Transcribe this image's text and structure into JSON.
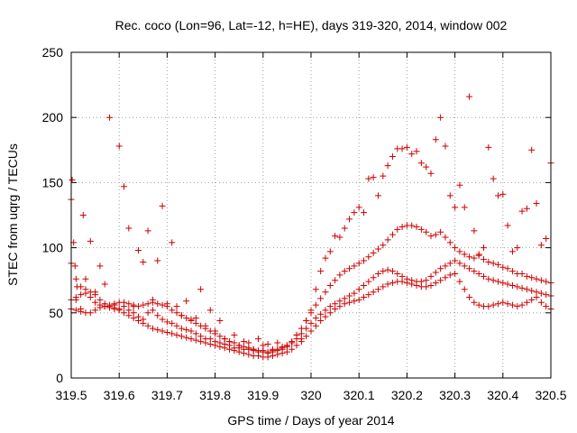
{
  "chart_data": {
    "type": "scatter",
    "title": "Rec. coco (Lon=96, Lat=-12, h=HE), days 319-320, 2014, window 002",
    "xlabel": "GPS time / Days of year 2014",
    "ylabel": "STEC from uqrg / TECUs",
    "xlim": [
      319.5,
      320.5
    ],
    "ylim": [
      0,
      250
    ],
    "xticks": [
      "319.5",
      "319.6",
      "319.7",
      "319.8",
      "319.9",
      "320",
      "320.1",
      "320.2",
      "320.3",
      "320.4",
      "320.5"
    ],
    "yticks": [
      "0",
      "50",
      "100",
      "150",
      "200",
      "250"
    ],
    "grid": true,
    "marker": "plus",
    "color": "#cc0000",
    "series": [
      {
        "name": "",
        "x": [
          319.5,
          319.502,
          319.505,
          319.508,
          319.51,
          319.512,
          319.52,
          319.525,
          319.53,
          319.54,
          319.55,
          319.56,
          319.57,
          319.58,
          319.59,
          319.6,
          319.61,
          319.62,
          319.63,
          319.64,
          319.65,
          319.66,
          319.67,
          319.68,
          319.69,
          319.7,
          319.71,
          319.72,
          319.73,
          319.74,
          319.75,
          319.76,
          319.77,
          319.78,
          319.79,
          319.8,
          319.81,
          319.82,
          319.83,
          319.84,
          319.85,
          319.86,
          319.87,
          319.88,
          319.89,
          319.9,
          319.91,
          319.92,
          319.93,
          319.94,
          319.95,
          319.96,
          319.97,
          319.98,
          319.99,
          320.0,
          320.01,
          320.02,
          320.03,
          320.04,
          320.05,
          320.06,
          320.07,
          320.08,
          320.09,
          320.1,
          320.11,
          320.12,
          320.13,
          320.14,
          320.15,
          320.16,
          320.17,
          320.18,
          320.19,
          320.2,
          320.21,
          320.22,
          320.23,
          320.24,
          320.25,
          320.26,
          320.27,
          320.28,
          320.29,
          320.3,
          320.31,
          320.32,
          320.33,
          320.34,
          320.35,
          320.36,
          320.37,
          320.38,
          320.39,
          320.4,
          320.41,
          320.42,
          320.43,
          320.44,
          320.45,
          320.46,
          320.47,
          320.48,
          320.49,
          320.5
        ],
        "values": [
          137,
          152,
          104,
          86,
          60,
          70,
          53,
          125,
          76,
          105,
          66,
          86,
          72,
          200,
          56,
          178,
          147,
          115,
          55,
          98,
          89,
          113,
          60,
          90,
          132,
          57,
          104,
          55,
          48,
          59,
          45,
          46,
          68,
          40,
          52,
          36,
          44,
          30,
          28,
          33,
          25,
          28,
          27,
          22,
          30,
          25,
          26,
          22,
          27,
          24,
          25,
          27,
          33,
          30,
          44,
          52,
          68,
          82,
          92,
          97,
          109,
          108,
          115,
          122,
          127,
          131,
          127,
          153,
          154,
          140,
          155,
          163,
          170,
          176,
          176,
          177,
          172,
          174,
          165,
          162,
          157,
          183,
          200,
          178,
          140,
          131,
          148,
          131,
          216,
          113,
          95,
          100,
          177,
          153,
          140,
          141,
          117,
          97,
          100,
          128,
          130,
          175,
          134,
          102,
          107,
          165
        ]
      },
      {
        "name": "",
        "x": [
          319.5,
          319.51,
          319.52,
          319.53,
          319.54,
          319.55,
          319.56,
          319.57,
          319.58,
          319.59,
          319.6,
          319.61,
          319.62,
          319.63,
          319.64,
          319.65,
          319.66,
          319.67,
          319.68,
          319.69,
          319.7,
          319.71,
          319.72,
          319.73,
          319.74,
          319.75,
          319.76,
          319.77,
          319.78,
          319.79,
          319.8,
          319.81,
          319.82,
          319.83,
          319.84,
          319.85,
          319.86,
          319.87,
          319.88,
          319.89,
          319.9,
          319.91,
          319.92,
          319.93,
          319.94,
          319.95,
          319.96,
          319.97,
          319.98,
          319.99,
          320.0,
          320.01,
          320.02,
          320.03,
          320.04,
          320.05,
          320.06,
          320.07,
          320.08,
          320.09,
          320.1,
          320.11,
          320.12,
          320.13,
          320.14,
          320.15,
          320.16,
          320.17,
          320.18,
          320.19,
          320.2,
          320.21,
          320.22,
          320.23,
          320.24,
          320.25,
          320.26,
          320.27,
          320.28,
          320.29,
          320.3,
          320.31,
          320.32,
          320.33,
          320.34,
          320.35,
          320.36,
          320.37,
          320.38,
          320.39,
          320.4,
          320.41,
          320.42,
          320.43,
          320.44,
          320.45,
          320.46,
          320.47,
          320.48,
          320.49,
          320.5
        ],
        "values": [
          88,
          76,
          70,
          68,
          62,
          58,
          56,
          55,
          54,
          53,
          53,
          55,
          52,
          50,
          47,
          45,
          50,
          52,
          48,
          45,
          43,
          42,
          40,
          38,
          37,
          36,
          34,
          32,
          30,
          30,
          28,
          27,
          26,
          25,
          23,
          23,
          22,
          22,
          21,
          20,
          20,
          19,
          20,
          21,
          22,
          24,
          28,
          33,
          38,
          44,
          50,
          56,
          61,
          66,
          71,
          75,
          79,
          82,
          84,
          86,
          88,
          90,
          93,
          96,
          99,
          102,
          106,
          110,
          114,
          116,
          117,
          117,
          116,
          114,
          112,
          109,
          110,
          112,
          108,
          104,
          100,
          97,
          95,
          93,
          92,
          94,
          91,
          89,
          88,
          87,
          85,
          84,
          82,
          80,
          80,
          78,
          77,
          76,
          75,
          74,
          73
        ]
      },
      {
        "name": "",
        "x": [
          319.5,
          319.51,
          319.52,
          319.53,
          319.54,
          319.55,
          319.56,
          319.57,
          319.58,
          319.59,
          319.6,
          319.61,
          319.62,
          319.63,
          319.64,
          319.65,
          319.66,
          319.67,
          319.68,
          319.69,
          319.7,
          319.71,
          319.72,
          319.73,
          319.74,
          319.75,
          319.76,
          319.77,
          319.78,
          319.79,
          319.8,
          319.81,
          319.82,
          319.83,
          319.84,
          319.85,
          319.86,
          319.87,
          319.88,
          319.89,
          319.9,
          319.91,
          319.92,
          319.93,
          319.94,
          319.95,
          319.96,
          319.97,
          319.98,
          319.99,
          320.0,
          320.01,
          320.02,
          320.03,
          320.04,
          320.05,
          320.06,
          320.07,
          320.08,
          320.09,
          320.1,
          320.11,
          320.12,
          320.13,
          320.14,
          320.15,
          320.16,
          320.17,
          320.18,
          320.19,
          320.2,
          320.21,
          320.22,
          320.23,
          320.24,
          320.25,
          320.26,
          320.27,
          320.28,
          320.29,
          320.3,
          320.31,
          320.32,
          320.33,
          320.34,
          320.35,
          320.36,
          320.37,
          320.38,
          320.39,
          320.4,
          320.41,
          320.42,
          320.43,
          320.44,
          320.45,
          320.46,
          320.47,
          320.48,
          320.49,
          320.5
        ],
        "values": [
          53,
          52,
          51,
          50,
          50,
          52,
          54,
          55,
          56,
          57,
          58,
          58,
          57,
          56,
          55,
          56,
          57,
          58,
          57,
          56,
          55,
          52,
          50,
          48,
          46,
          44,
          42,
          40,
          38,
          36,
          34,
          32,
          30,
          28,
          27,
          25,
          24,
          23,
          22,
          21,
          21,
          20,
          21,
          22,
          23,
          25,
          27,
          30,
          34,
          38,
          42,
          46,
          49,
          52,
          55,
          57,
          59,
          61,
          63,
          65,
          68,
          71,
          74,
          77,
          80,
          82,
          83,
          82,
          80,
          78,
          76,
          75,
          74,
          74,
          75,
          78,
          81,
          84,
          86,
          88,
          90,
          88,
          86,
          84,
          82,
          80,
          78,
          76,
          75,
          74,
          73,
          72,
          71,
          70,
          69,
          68,
          67,
          66,
          65,
          64,
          63
        ]
      },
      {
        "name": "",
        "x": [
          319.5,
          319.51,
          319.52,
          319.53,
          319.54,
          319.55,
          319.56,
          319.57,
          319.58,
          319.59,
          319.6,
          319.61,
          319.62,
          319.63,
          319.64,
          319.65,
          319.66,
          319.67,
          319.68,
          319.69,
          319.7,
          319.71,
          319.72,
          319.73,
          319.74,
          319.75,
          319.76,
          319.77,
          319.78,
          319.79,
          319.8,
          319.81,
          319.82,
          319.83,
          319.84,
          319.85,
          319.86,
          319.87,
          319.88,
          319.89,
          319.9,
          319.91,
          319.92,
          319.93,
          319.94,
          319.95,
          319.96,
          319.97,
          319.98,
          319.99,
          320.0,
          320.01,
          320.02,
          320.03,
          320.04,
          320.05,
          320.06,
          320.07,
          320.08,
          320.09,
          320.1,
          320.11,
          320.12,
          320.13,
          320.14,
          320.15,
          320.16,
          320.17,
          320.18,
          320.19,
          320.2,
          320.21,
          320.22,
          320.23,
          320.24,
          320.25,
          320.26,
          320.27,
          320.28,
          320.29,
          320.3,
          320.31,
          320.32,
          320.33,
          320.34,
          320.35,
          320.36,
          320.37,
          320.38,
          320.39,
          320.4,
          320.41,
          320.42,
          320.43,
          320.44,
          320.45,
          320.46,
          320.47,
          320.48,
          320.49,
          320.5
        ],
        "values": [
          60,
          62,
          64,
          65,
          66,
          64,
          60,
          57,
          55,
          54,
          52,
          50,
          48,
          46,
          44,
          42,
          40,
          38,
          37,
          36,
          35,
          34,
          33,
          32,
          31,
          30,
          29,
          28,
          27,
          26,
          25,
          24,
          23,
          22,
          21,
          20,
          19,
          18,
          17,
          17,
          16,
          16,
          17,
          18,
          19,
          20,
          22,
          25,
          28,
          32,
          36,
          40,
          44,
          47,
          50,
          53,
          55,
          57,
          58,
          59,
          60,
          62,
          64,
          66,
          68,
          70,
          72,
          73,
          74,
          74,
          73,
          72,
          71,
          70,
          70,
          71,
          73,
          75,
          77,
          79,
          80,
          74,
          68,
          62,
          58,
          56,
          55,
          55,
          56,
          57,
          58,
          57,
          56,
          55,
          56,
          58,
          60,
          62,
          58,
          55,
          53
        ]
      }
    ]
  }
}
